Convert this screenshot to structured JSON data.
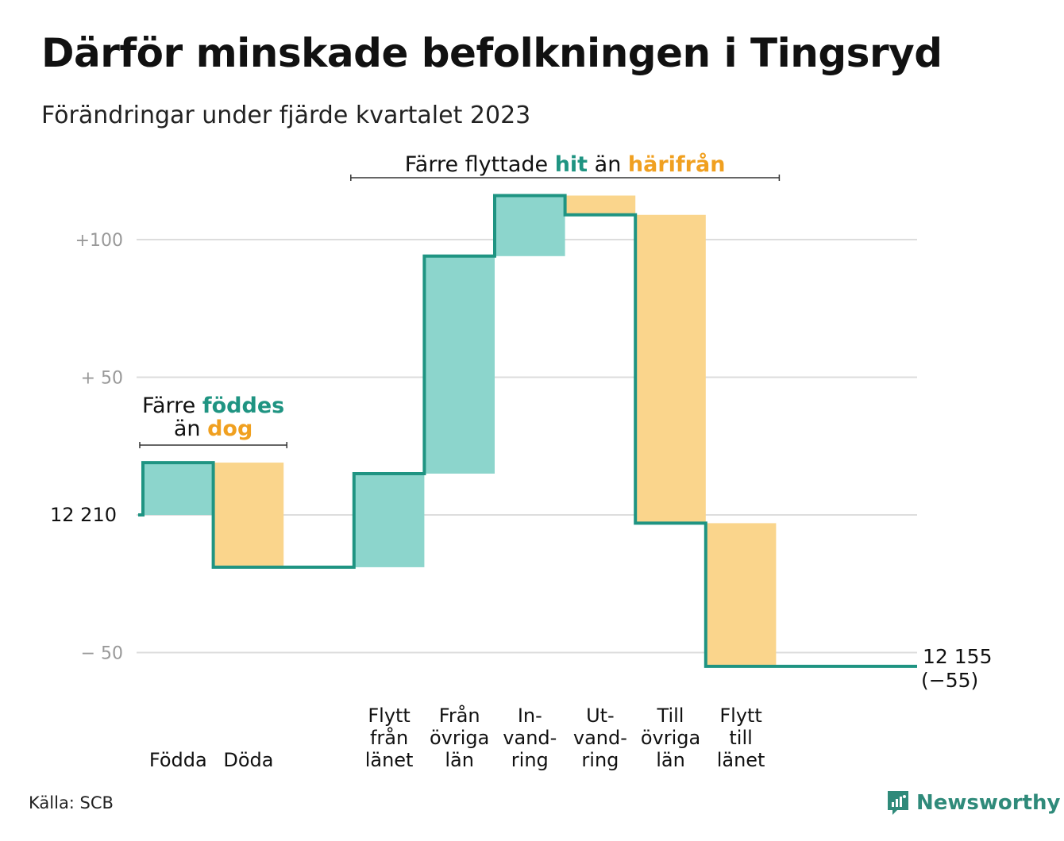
{
  "title": "Därför minskade befolkningen i Tingsryd",
  "subtitle": "Förändringar under fjärde kvartalet 2023",
  "source": "Källa: SCB",
  "brand": "Newsworthy",
  "colors": {
    "teal": "#1f9482",
    "teal_light": "#8cd5cc",
    "orange_light": "#fad58c",
    "orange_text": "#f0a020",
    "grid": "#dddddd",
    "tick": "#999999"
  },
  "chart_data": {
    "type": "waterfall",
    "start_value": 12210,
    "start_label": "12  210",
    "end_label_value": "12 155",
    "end_label_change": "(−55)",
    "ylim": [
      -55,
      120
    ],
    "y_ticks": [
      {
        "value": 100,
        "label": "+100"
      },
      {
        "value": 50,
        "label": "+  50"
      },
      {
        "value": -50,
        "label": "−  50"
      }
    ],
    "steps": [
      {
        "label_lines": [
          "Födda"
        ],
        "change": 19,
        "kind": "in"
      },
      {
        "label_lines": [
          "Döda"
        ],
        "change": -38,
        "kind": "out"
      },
      {
        "label_lines": [
          ""
        ],
        "change": 0,
        "kind": "gap"
      },
      {
        "label_lines": [
          "Flytt",
          "från",
          "länet"
        ],
        "change": 34,
        "kind": "in"
      },
      {
        "label_lines": [
          "Från",
          "övriga",
          "län"
        ],
        "change": 79,
        "kind": "in"
      },
      {
        "label_lines": [
          "In-",
          "vand-",
          "ring"
        ],
        "change": 22,
        "kind": "in"
      },
      {
        "label_lines": [
          "Ut-",
          "vand-",
          "ring"
        ],
        "change": -7,
        "kind": "out"
      },
      {
        "label_lines": [
          "Till",
          "övriga",
          "län"
        ],
        "change": -112,
        "kind": "out"
      },
      {
        "label_lines": [
          "Flytt",
          "till",
          "länet"
        ],
        "change": -52,
        "kind": "out"
      },
      {
        "label_lines": [
          ""
        ],
        "change": 0,
        "kind": "gap"
      }
    ],
    "annotations": [
      {
        "parts": [
          {
            "text": "Färre ",
            "tone": "plain"
          },
          {
            "text": "föddes",
            "tone": "in"
          }
        ],
        "parts2": [
          {
            "text": "än ",
            "tone": "plain"
          },
          {
            "text": "dog",
            "tone": "out"
          }
        ],
        "from_step": 0,
        "to_step": 1
      },
      {
        "parts": [
          {
            "text": "Färre flyttade ",
            "tone": "plain"
          },
          {
            "text": "hit",
            "tone": "in"
          },
          {
            "text": " än ",
            "tone": "plain"
          },
          {
            "text": "härifrån",
            "tone": "out"
          }
        ],
        "parts2": [],
        "from_step": 3,
        "to_step": 8
      }
    ]
  }
}
